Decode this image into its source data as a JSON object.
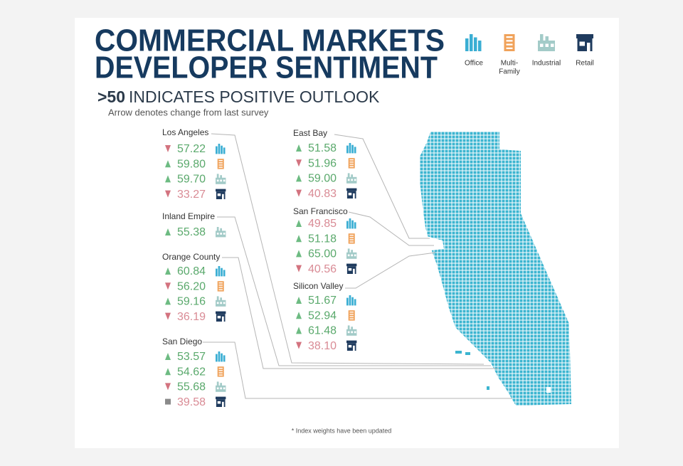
{
  "header": {
    "title": [
      "COMMERCIAL MARKETS",
      "DEVELOPER SENTIMENT"
    ],
    "subtitle_emphasis": ">50",
    "subtitle": "INDICATES POSITIVE OUTLOOK",
    "note": "Arrow denotes change from last survey"
  },
  "legend": [
    {
      "label": [
        "Office"
      ],
      "color": "#3aaed3"
    },
    {
      "label": [
        "Multi-",
        "Family"
      ],
      "color": "#f0a25a"
    },
    {
      "label": [
        "Industrial"
      ],
      "color": "#a3cbc8"
    },
    {
      "label": [
        "Retail"
      ],
      "color": "#1f3b5e"
    }
  ],
  "regions": [
    {
      "name": "Los Angeles",
      "items": [
        {
          "value": "57.22",
          "trend": "down",
          "positive": true,
          "sector": 0
        },
        {
          "value": "59.80",
          "trend": "up",
          "positive": true,
          "sector": 1
        },
        {
          "value": "59.70",
          "trend": "up",
          "positive": true,
          "sector": 2
        },
        {
          "value": "33.27",
          "trend": "down",
          "positive": false,
          "sector": 3
        }
      ]
    },
    {
      "name": "Inland Empire",
      "items": [
        {
          "value": "55.38",
          "trend": "up",
          "positive": true,
          "sector": 2
        }
      ]
    },
    {
      "name": "Orange County",
      "items": [
        {
          "value": "60.84",
          "trend": "up",
          "positive": true,
          "sector": 0
        },
        {
          "value": "56.20",
          "trend": "down",
          "positive": true,
          "sector": 1
        },
        {
          "value": "59.16",
          "trend": "up",
          "positive": true,
          "sector": 2
        },
        {
          "value": "36.19",
          "trend": "down",
          "positive": false,
          "sector": 3
        }
      ]
    },
    {
      "name": "San Diego",
      "items": [
        {
          "value": "53.57",
          "trend": "up",
          "positive": true,
          "sector": 0
        },
        {
          "value": "54.62",
          "trend": "up",
          "positive": true,
          "sector": 1
        },
        {
          "value": "55.68",
          "trend": "down",
          "positive": true,
          "sector": 2
        },
        {
          "value": "39.58",
          "trend": "flat",
          "positive": false,
          "sector": 3
        }
      ]
    },
    {
      "name": "East Bay",
      "items": [
        {
          "value": "51.58",
          "trend": "up",
          "positive": true,
          "sector": 0
        },
        {
          "value": "51.96",
          "trend": "down",
          "positive": true,
          "sector": 1
        },
        {
          "value": "59.00",
          "trend": "up",
          "positive": true,
          "sector": 2
        },
        {
          "value": "40.83",
          "trend": "down",
          "positive": false,
          "sector": 3
        }
      ]
    },
    {
      "name": "San Francisco",
      "items": [
        {
          "value": "49.85",
          "trend": "up",
          "positive": false,
          "sector": 0
        },
        {
          "value": "51.18",
          "trend": "up",
          "positive": true,
          "sector": 1
        },
        {
          "value": "65.00",
          "trend": "up",
          "positive": true,
          "sector": 2
        },
        {
          "value": "40.56",
          "trend": "down",
          "positive": false,
          "sector": 3
        }
      ]
    },
    {
      "name": "Silicon Valley",
      "items": [
        {
          "value": "51.67",
          "trend": "up",
          "positive": true,
          "sector": 0
        },
        {
          "value": "52.94",
          "trend": "up",
          "positive": true,
          "sector": 1
        },
        {
          "value": "61.48",
          "trend": "up",
          "positive": true,
          "sector": 2
        },
        {
          "value": "38.10",
          "trend": "down",
          "positive": false,
          "sector": 3
        }
      ]
    }
  ],
  "footnote": "* Index weights have been updated"
}
